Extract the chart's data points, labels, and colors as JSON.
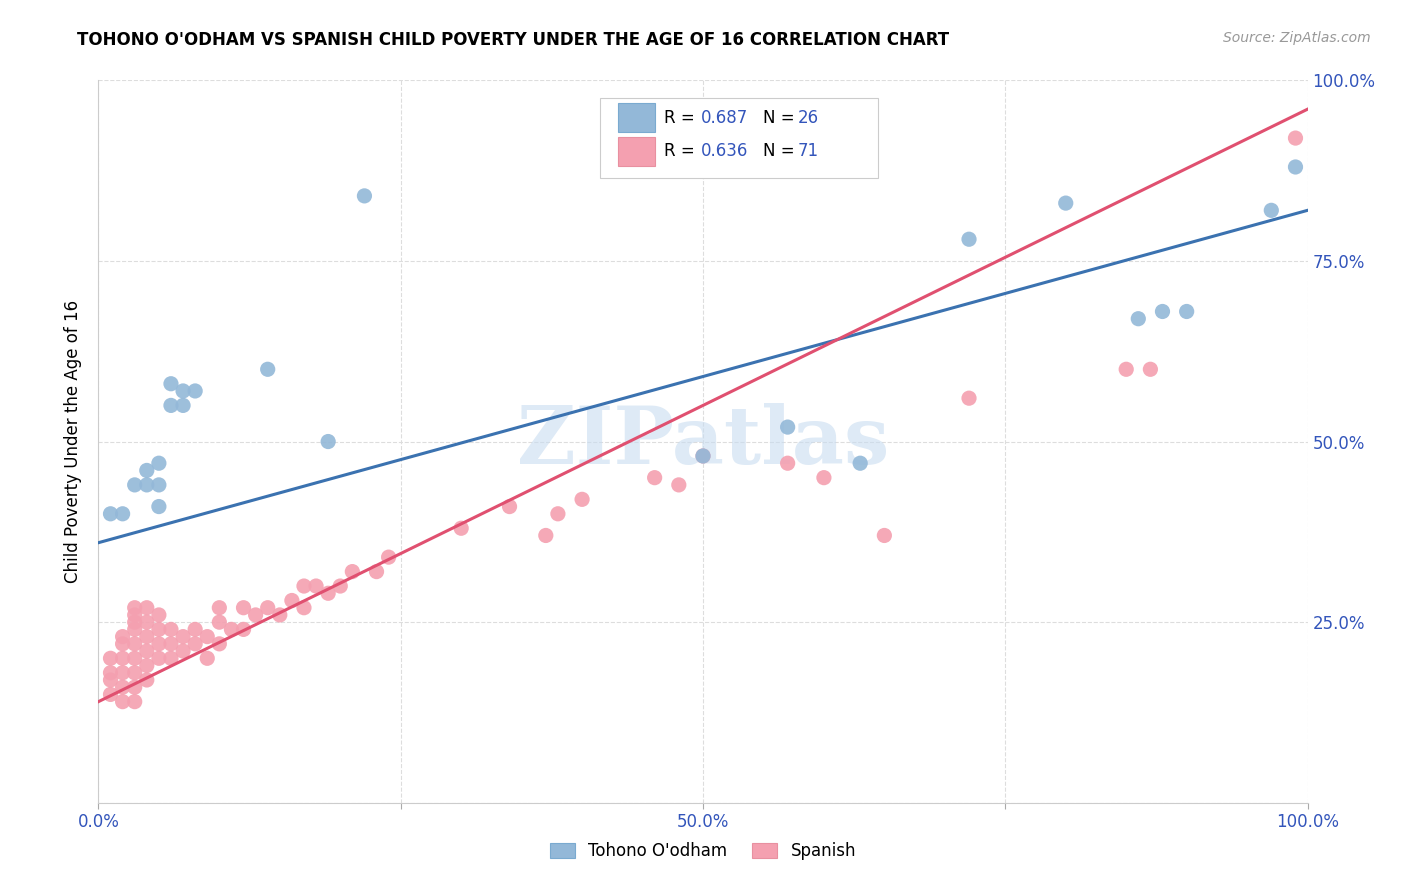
{
  "title": "TOHONO O'ODHAM VS SPANISH CHILD POVERTY UNDER THE AGE OF 16 CORRELATION CHART",
  "source": "Source: ZipAtlas.com",
  "ylabel": "Child Poverty Under the Age of 16",
  "xlim": [
    0,
    1
  ],
  "ylim": [
    0,
    1
  ],
  "xticks": [
    0.0,
    0.25,
    0.5,
    0.75,
    1.0
  ],
  "yticks": [
    0.0,
    0.25,
    0.5,
    0.75,
    1.0
  ],
  "xticklabels": [
    "0.0%",
    "",
    "50.0%",
    "",
    "100.0%"
  ],
  "yticklabels_right": [
    "",
    "25.0%",
    "50.0%",
    "75.0%",
    "100.0%"
  ],
  "tohono_color": "#93B8D8",
  "spanish_color": "#F4A0B0",
  "tohono_line_color": "#3B72B0",
  "spanish_line_color": "#E05070",
  "watermark": "ZIPatlas",
  "watermark_color": "#C8DCF0",
  "legend_r1": "R = 0.687",
  "legend_n1": "N = 26",
  "legend_r2": "R = 0.636",
  "legend_n2": "N = 71",
  "legend_value_color": "#3355BB",
  "grid_color": "#DDDDDD",
  "background_color": "#FFFFFF",
  "tohono_x": [
    0.01,
    0.02,
    0.03,
    0.04,
    0.04,
    0.05,
    0.05,
    0.05,
    0.06,
    0.06,
    0.07,
    0.07,
    0.08,
    0.14,
    0.19,
    0.22,
    0.5,
    0.57,
    0.63,
    0.72,
    0.8,
    0.86,
    0.88,
    0.9,
    0.97,
    0.99
  ],
  "tohono_y": [
    0.4,
    0.4,
    0.44,
    0.44,
    0.46,
    0.41,
    0.44,
    0.47,
    0.55,
    0.58,
    0.55,
    0.57,
    0.57,
    0.6,
    0.5,
    0.84,
    0.48,
    0.52,
    0.47,
    0.78,
    0.83,
    0.67,
    0.68,
    0.68,
    0.82,
    0.88
  ],
  "spanish_x": [
    0.01,
    0.01,
    0.01,
    0.01,
    0.02,
    0.02,
    0.02,
    0.02,
    0.02,
    0.02,
    0.03,
    0.03,
    0.03,
    0.03,
    0.03,
    0.03,
    0.03,
    0.03,
    0.03,
    0.04,
    0.04,
    0.04,
    0.04,
    0.04,
    0.04,
    0.05,
    0.05,
    0.05,
    0.05,
    0.06,
    0.06,
    0.06,
    0.07,
    0.07,
    0.08,
    0.08,
    0.09,
    0.09,
    0.1,
    0.1,
    0.1,
    0.11,
    0.12,
    0.12,
    0.13,
    0.14,
    0.15,
    0.16,
    0.17,
    0.17,
    0.18,
    0.19,
    0.2,
    0.21,
    0.23,
    0.24,
    0.3,
    0.34,
    0.37,
    0.38,
    0.4,
    0.46,
    0.48,
    0.5,
    0.57,
    0.6,
    0.65,
    0.72,
    0.85,
    0.87,
    0.99
  ],
  "spanish_y": [
    0.15,
    0.17,
    0.18,
    0.2,
    0.14,
    0.16,
    0.18,
    0.2,
    0.22,
    0.23,
    0.14,
    0.16,
    0.18,
    0.2,
    0.22,
    0.24,
    0.25,
    0.26,
    0.27,
    0.17,
    0.19,
    0.21,
    0.23,
    0.25,
    0.27,
    0.2,
    0.22,
    0.24,
    0.26,
    0.2,
    0.22,
    0.24,
    0.21,
    0.23,
    0.22,
    0.24,
    0.2,
    0.23,
    0.22,
    0.25,
    0.27,
    0.24,
    0.24,
    0.27,
    0.26,
    0.27,
    0.26,
    0.28,
    0.27,
    0.3,
    0.3,
    0.29,
    0.3,
    0.32,
    0.32,
    0.34,
    0.38,
    0.41,
    0.37,
    0.4,
    0.42,
    0.45,
    0.44,
    0.48,
    0.47,
    0.45,
    0.37,
    0.56,
    0.6,
    0.6,
    0.92
  ],
  "tohono_line_x0": 0.0,
  "tohono_line_y0": 0.36,
  "tohono_line_x1": 1.0,
  "tohono_line_y1": 0.82,
  "spanish_line_x0": 0.0,
  "spanish_line_y0": 0.14,
  "spanish_line_x1": 1.0,
  "spanish_line_y1": 0.96
}
